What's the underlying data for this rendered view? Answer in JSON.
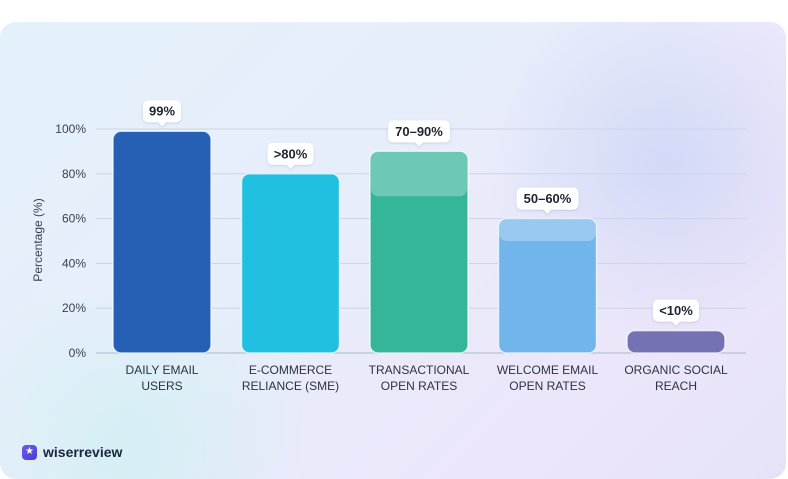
{
  "brand": {
    "name": "wiserreview",
    "icon": "star-badge-icon",
    "color": "#5a48e6"
  },
  "chart_data": {
    "type": "bar",
    "ylabel": "Percentage (%)",
    "ylim": [
      0,
      100
    ],
    "yticks": [
      "0%",
      "20%",
      "40%",
      "60%",
      "80%",
      "100%"
    ],
    "ytick_values": [
      0,
      20,
      40,
      60,
      80,
      100
    ],
    "grid": true,
    "categories": [
      [
        "DAILY EMAIL",
        "USERS"
      ],
      [
        "E-COMMERCE",
        "RELIANCE (SME)"
      ],
      [
        "TRANSACTIONAL",
        "OPEN RATES"
      ],
      [
        "WELCOME EMAIL",
        "OPEN RATES"
      ],
      [
        "ORGANIC SOCIAL",
        "REACH"
      ]
    ],
    "values": [
      99,
      80,
      90,
      60,
      10
    ],
    "range_low": [
      null,
      null,
      70,
      50,
      null
    ],
    "data_labels": [
      "99%",
      ">80%",
      "70–90%",
      "50–60%",
      "<10%"
    ],
    "colors": [
      "#2660b5",
      "#22c0e0",
      "#35b59a",
      "#72b5ea",
      "#7472b2"
    ]
  }
}
